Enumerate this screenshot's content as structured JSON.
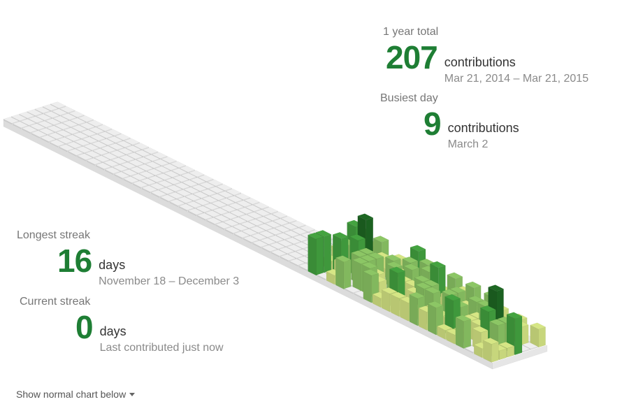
{
  "stats": {
    "total": {
      "label": "1 year total",
      "value": "207",
      "unit": "contributions",
      "range": "Mar 21, 2014 – Mar 21, 2015"
    },
    "busiest": {
      "label": "Busiest day",
      "value": "9",
      "unit": "contributions",
      "date": "March 2"
    },
    "longest": {
      "label": "Longest streak",
      "value": "16",
      "unit": "days",
      "range": "November 18 – December 3"
    },
    "current": {
      "label": "Current streak",
      "value": "0",
      "unit": "days",
      "note": "Last contributed just now"
    }
  },
  "toggle": {
    "label": "Show normal chart below"
  },
  "colors": {
    "accent": "#1e7e34",
    "empty": "#eeeeee",
    "level1": "#d6e685",
    "level2": "#8cc665",
    "level3": "#44a340",
    "level4": "#1e6823"
  },
  "chart_data": {
    "type": "heatmap",
    "weeks": 53,
    "days": 7
  }
}
